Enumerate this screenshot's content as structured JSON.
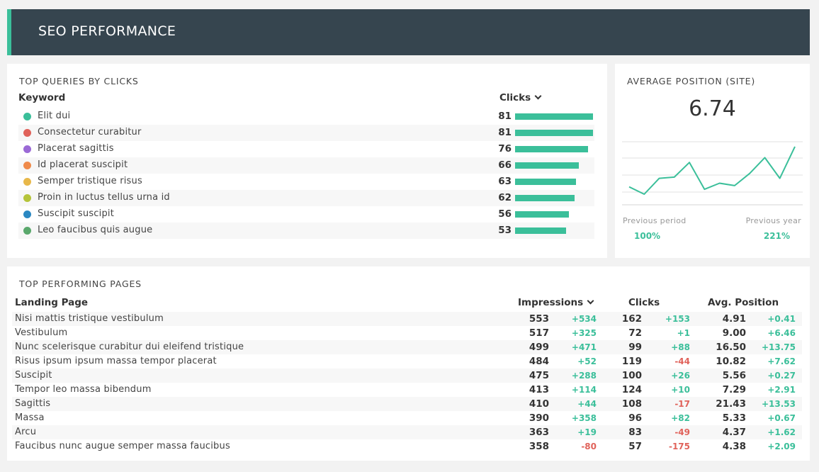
{
  "header": {
    "title": "SEO PERFORMANCE"
  },
  "queries": {
    "title": "TOP QUERIES BY CLICKS",
    "col_keyword": "Keyword",
    "col_clicks": "Clicks",
    "max": 81,
    "rows": [
      {
        "keyword": "Elit dui",
        "clicks": 81,
        "color": "#3bbf9a"
      },
      {
        "keyword": "Consectetur curabitur",
        "clicks": 81,
        "color": "#e0625a"
      },
      {
        "keyword": "Placerat sagittis",
        "clicks": 76,
        "color": "#9b6ad6"
      },
      {
        "keyword": "Id placerat suscipit",
        "clicks": 66,
        "color": "#ef8a4a"
      },
      {
        "keyword": "Semper tristique risus",
        "clicks": 63,
        "color": "#e8b84a"
      },
      {
        "keyword": "Proin in luctus tellus urna id",
        "clicks": 62,
        "color": "#b5c43a"
      },
      {
        "keyword": "Suscipit suscipit",
        "clicks": 56,
        "color": "#2b88c2"
      },
      {
        "keyword": "Leo faucibus quis augue",
        "clicks": 53,
        "color": "#5aa86c"
      }
    ]
  },
  "avg_position": {
    "title": "AVERAGE POSITION (SITE)",
    "value": "6.74",
    "previous_period_label": "Previous period",
    "previous_period_value": "100%",
    "previous_year_label": "Previous year",
    "previous_year_value": "221%",
    "sparkline": [
      7.2,
      7.8,
      6.5,
      6.4,
      5.2,
      7.4,
      6.9,
      7.1,
      6.1,
      4.8,
      6.5,
      3.9
    ],
    "line_color": "#3bbf9a"
  },
  "pages": {
    "title": "TOP PERFORMING PAGES",
    "col_page": "Landing Page",
    "col_impressions": "Impressions",
    "col_clicks": "Clicks",
    "col_position": "Avg. Position",
    "rows": [
      {
        "page": "Nisi mattis tristique vestibulum",
        "impressions": "553",
        "impressions_delta": "+534",
        "clicks": "162",
        "clicks_delta": "+153",
        "position": "4.91",
        "position_delta": "+0.41"
      },
      {
        "page": "Vestibulum",
        "impressions": "517",
        "impressions_delta": "+325",
        "clicks": "72",
        "clicks_delta": "+1",
        "position": "9.00",
        "position_delta": "+6.46"
      },
      {
        "page": "Nunc scelerisque curabitur dui eleifend tristique",
        "impressions": "499",
        "impressions_delta": "+471",
        "clicks": "99",
        "clicks_delta": "+88",
        "position": "16.50",
        "position_delta": "+13.75"
      },
      {
        "page": "Risus ipsum ipsum massa tempor placerat",
        "impressions": "484",
        "impressions_delta": "+52",
        "clicks": "119",
        "clicks_delta": "-44",
        "position": "10.82",
        "position_delta": "+7.62"
      },
      {
        "page": "Suscipit",
        "impressions": "475",
        "impressions_delta": "+288",
        "clicks": "100",
        "clicks_delta": "+26",
        "position": "5.56",
        "position_delta": "+0.27"
      },
      {
        "page": "Tempor leo massa bibendum",
        "impressions": "413",
        "impressions_delta": "+114",
        "clicks": "124",
        "clicks_delta": "+10",
        "position": "7.29",
        "position_delta": "+2.91"
      },
      {
        "page": "Sagittis",
        "impressions": "410",
        "impressions_delta": "+44",
        "clicks": "108",
        "clicks_delta": "-17",
        "position": "21.43",
        "position_delta": "+13.53"
      },
      {
        "page": "Massa",
        "impressions": "390",
        "impressions_delta": "+358",
        "clicks": "96",
        "clicks_delta": "+82",
        "position": "5.33",
        "position_delta": "+0.67"
      },
      {
        "page": "Arcu",
        "impressions": "363",
        "impressions_delta": "+19",
        "clicks": "83",
        "clicks_delta": "-49",
        "position": "4.37",
        "position_delta": "+1.62"
      },
      {
        "page": "Faucibus nunc augue semper massa faucibus",
        "impressions": "358",
        "impressions_delta": "-80",
        "clicks": "57",
        "clicks_delta": "-175",
        "position": "4.38",
        "position_delta": "+2.09"
      }
    ]
  }
}
